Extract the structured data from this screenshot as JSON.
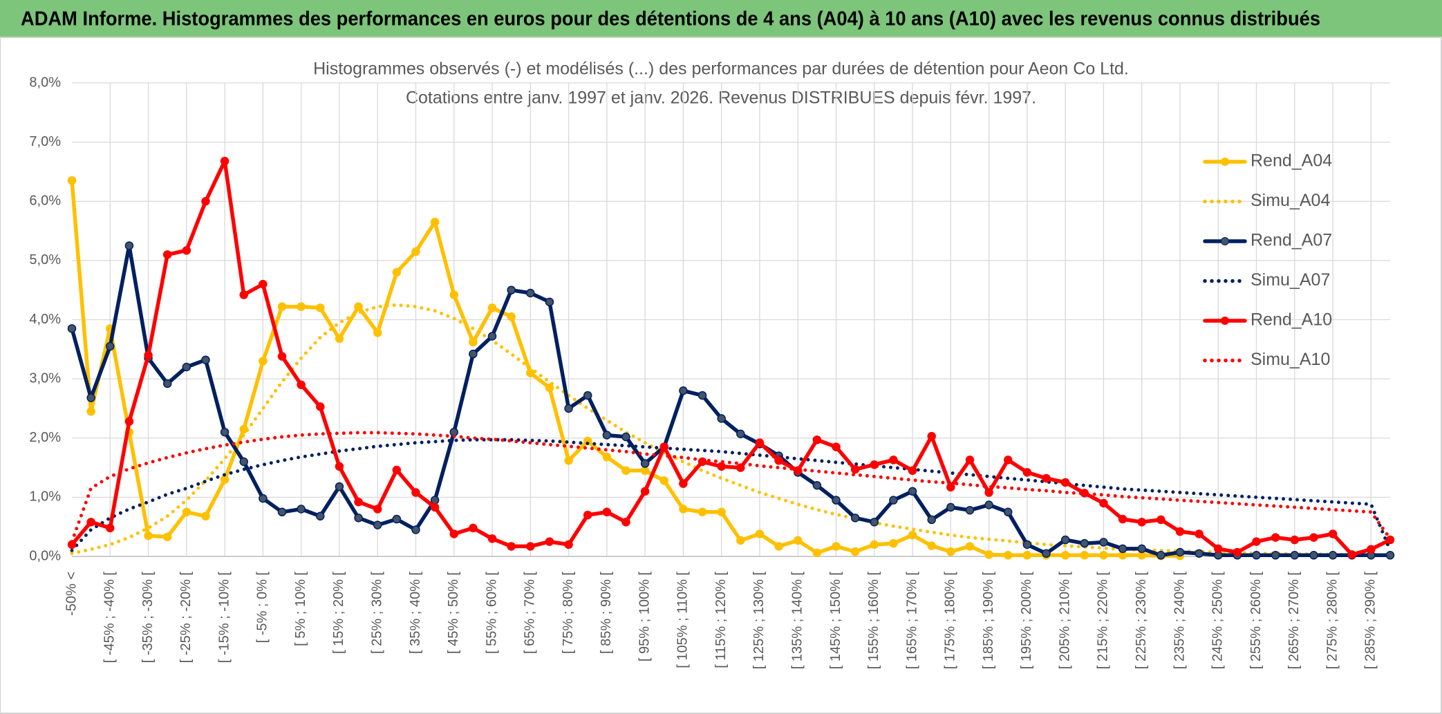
{
  "chart_data": {
    "type": "line",
    "title": "ADAM Informe. Histogrammes des performances en euros pour des détentions de 4 ans (A04) à 10 ans (A10) avec les revenus connus distribués",
    "subtitle": [
      "Histogrammes observés (-) et modélisés (...) des performances par durées de détention pour Aeon Co Ltd.",
      "Cotations entre janv. 1997 et janv. 2026. Revenus DISTRIBUES depuis févr. 1997."
    ],
    "categories": [
      "-50% <",
      null,
      "[ -45% ; -40% [",
      null,
      "[ -35% ; -30% [",
      null,
      "[ -25% ; -20% [",
      null,
      "[ -15% ; -10% [",
      null,
      "[ -5% ; 0% [",
      null,
      "[ 5% ; 10% [",
      null,
      "[ 15% ; 20% [",
      null,
      "[ 25% ; 30% [",
      null,
      "[ 35% ; 40% [",
      null,
      "[ 45% ; 50% [",
      null,
      "[ 55% ; 60% [",
      null,
      "[ 65% ; 70% [",
      null,
      "[ 75% ; 80% [",
      null,
      "[ 85% ; 90% [",
      null,
      "[ 95% ; 100% [",
      null,
      "[ 105% ; 110% [",
      null,
      "[ 115% ; 120% [",
      null,
      "[ 125% ; 130% [",
      null,
      "[ 135% ; 140% [",
      null,
      "[ 145% ; 150% [",
      null,
      "[ 155% ; 160% [",
      null,
      "[ 165% ; 170% [",
      null,
      "[ 175% ; 180% [",
      null,
      "[ 185% ; 190% [",
      null,
      "[ 195% ; 200% [",
      null,
      "[ 205% ; 210% [",
      null,
      "[ 215% ; 220% [",
      null,
      "[ 225% ; 230% [",
      null,
      "[ 235% ; 240% [",
      null,
      "[ 245% ; 250% [",
      null,
      "[ 255% ; 260% [",
      null,
      "[ 265% ; 270% [",
      null,
      "[ 275% ; 280% [",
      null,
      "[ 285% ; 290% [",
      null
    ],
    "ylim": [
      0,
      8
    ],
    "yticks": [
      {
        "value": 0,
        "label": "0,0%"
      },
      {
        "value": 1,
        "label": "1,0%"
      },
      {
        "value": 2,
        "label": "2,0%"
      },
      {
        "value": 3,
        "label": "3,0%"
      },
      {
        "value": 4,
        "label": "4,0%"
      },
      {
        "value": 5,
        "label": "5,0%"
      },
      {
        "value": 6,
        "label": "6,0%"
      },
      {
        "value": 7,
        "label": "7,0%"
      },
      {
        "value": 8,
        "label": "8,0%"
      }
    ],
    "grid": true,
    "legend": "right",
    "series": [
      {
        "name": "Rend_A04",
        "color": "#FFC000",
        "line_style": "solid",
        "markers": true,
        "values": [
          6.35,
          2.45,
          3.85,
          2.1,
          0.35,
          0.33,
          0.75,
          0.68,
          1.3,
          2.15,
          3.3,
          4.22,
          4.22,
          4.2,
          3.68,
          4.22,
          3.78,
          4.8,
          5.15,
          5.65,
          4.42,
          3.62,
          4.2,
          4.05,
          3.1,
          2.85,
          1.62,
          1.95,
          1.68,
          1.45,
          1.45,
          1.28,
          0.8,
          0.75,
          0.75,
          0.27,
          0.38,
          0.17,
          0.27,
          0.06,
          0.17,
          0.08,
          0.2,
          0.22,
          0.36,
          0.18,
          0.08,
          0.17,
          0.03,
          0.02,
          0.02,
          0.02,
          0.02,
          0.02,
          0.02,
          0.02,
          0.02,
          0.01,
          0.01,
          null,
          null,
          null,
          null,
          null,
          null,
          null,
          null,
          null,
          null,
          null
        ]
      },
      {
        "name": "Simu_A04",
        "color": "#FFC000",
        "line_style": "dotted",
        "markers": false,
        "values": [
          0.05,
          0.12,
          0.2,
          0.32,
          0.48,
          0.68,
          0.95,
          1.28,
          1.65,
          2.05,
          2.5,
          2.95,
          3.35,
          3.7,
          3.95,
          4.12,
          4.22,
          4.25,
          4.22,
          4.15,
          4.02,
          3.85,
          3.65,
          3.42,
          3.18,
          2.95,
          2.72,
          2.5,
          2.3,
          2.1,
          1.92,
          1.75,
          1.6,
          1.45,
          1.32,
          1.2,
          1.08,
          0.98,
          0.88,
          0.79,
          0.71,
          0.64,
          0.57,
          0.51,
          0.46,
          0.41,
          0.36,
          0.32,
          0.29,
          0.26,
          0.23,
          0.2,
          0.18,
          0.16,
          0.14,
          0.12,
          0.11,
          0.1,
          0.09,
          0.08,
          0.07,
          0.06,
          0.05,
          0.05,
          0.04,
          0.04,
          0.03,
          0.03,
          0.03,
          0.02
        ]
      },
      {
        "name": "Rend_A07",
        "color": "#002060",
        "line_style": "solid",
        "markers": true,
        "values": [
          3.85,
          2.68,
          3.55,
          5.25,
          3.35,
          2.92,
          3.2,
          3.32,
          2.1,
          1.6,
          0.98,
          0.75,
          0.8,
          0.68,
          1.18,
          0.65,
          0.53,
          0.63,
          0.45,
          0.95,
          2.1,
          3.42,
          3.72,
          4.5,
          4.45,
          4.3,
          2.5,
          2.72,
          2.05,
          2.02,
          1.57,
          1.85,
          2.8,
          2.72,
          2.33,
          2.07,
          1.9,
          1.7,
          1.42,
          1.2,
          0.95,
          0.65,
          0.58,
          0.95,
          1.1,
          0.62,
          0.83,
          0.78,
          0.87,
          0.75,
          0.2,
          0.05,
          0.28,
          0.22,
          0.24,
          0.13,
          0.13,
          0.02,
          0.07,
          0.05,
          0.02,
          0.02,
          0.02,
          0.02,
          0.02,
          0.02,
          0.02,
          0.02,
          0.02,
          0.02
        ]
      },
      {
        "name": "Simu_A07",
        "color": "#002060",
        "line_style": "dotted",
        "markers": false,
        "values": [
          0.1,
          0.45,
          0.65,
          0.8,
          0.92,
          1.05,
          1.15,
          1.27,
          1.38,
          1.47,
          1.55,
          1.62,
          1.68,
          1.73,
          1.78,
          1.82,
          1.86,
          1.89,
          1.92,
          1.94,
          1.96,
          1.97,
          1.97,
          1.97,
          1.96,
          1.95,
          1.93,
          1.91,
          1.89,
          1.87,
          1.85,
          1.83,
          1.81,
          1.79,
          1.77,
          1.74,
          1.71,
          1.68,
          1.65,
          1.62,
          1.59,
          1.56,
          1.53,
          1.5,
          1.47,
          1.44,
          1.41,
          1.38,
          1.35,
          1.32,
          1.29,
          1.26,
          1.23,
          1.2,
          1.17,
          1.14,
          1.12,
          1.1,
          1.08,
          1.06,
          1.04,
          1.02,
          1.0,
          0.98,
          0.96,
          0.94,
          0.92,
          0.9,
          0.88,
          0.1
        ]
      },
      {
        "name": "Rend_A10",
        "color": "#FF0000",
        "line_style": "solid",
        "markers": true,
        "values": [
          0.2,
          0.58,
          0.48,
          2.28,
          3.4,
          5.1,
          5.17,
          6.0,
          6.68,
          4.42,
          4.6,
          3.38,
          2.9,
          2.53,
          1.52,
          0.92,
          0.8,
          1.46,
          1.08,
          0.83,
          0.38,
          0.48,
          0.3,
          0.17,
          0.17,
          0.25,
          0.2,
          0.7,
          0.75,
          0.58,
          1.1,
          1.85,
          1.23,
          1.6,
          1.52,
          1.5,
          1.92,
          1.62,
          1.45,
          1.97,
          1.85,
          1.47,
          1.55,
          1.63,
          1.45,
          2.03,
          1.17,
          1.63,
          1.08,
          1.63,
          1.42,
          1.32,
          1.25,
          1.07,
          0.9,
          0.63,
          0.58,
          0.62,
          0.42,
          0.38,
          0.13,
          0.07,
          0.25,
          0.32,
          0.28,
          0.32,
          0.38,
          0.03,
          0.12,
          0.28
        ]
      },
      {
        "name": "Simu_A10",
        "color": "#FF0000",
        "line_style": "dotted",
        "markers": false,
        "values": [
          0.25,
          1.15,
          1.35,
          1.48,
          1.58,
          1.67,
          1.75,
          1.82,
          1.88,
          1.93,
          1.98,
          2.02,
          2.05,
          2.07,
          2.08,
          2.09,
          2.09,
          2.08,
          2.07,
          2.05,
          2.03,
          2.0,
          1.98,
          1.95,
          1.92,
          1.89,
          1.86,
          1.83,
          1.8,
          1.77,
          1.73,
          1.7,
          1.67,
          1.63,
          1.6,
          1.57,
          1.53,
          1.5,
          1.47,
          1.44,
          1.41,
          1.38,
          1.35,
          1.32,
          1.29,
          1.26,
          1.24,
          1.21,
          1.18,
          1.16,
          1.13,
          1.11,
          1.08,
          1.06,
          1.04,
          1.01,
          0.99,
          0.97,
          0.95,
          0.93,
          0.91,
          0.89,
          0.87,
          0.85,
          0.83,
          0.81,
          0.79,
          0.77,
          0.75,
          0.3
        ]
      }
    ]
  }
}
